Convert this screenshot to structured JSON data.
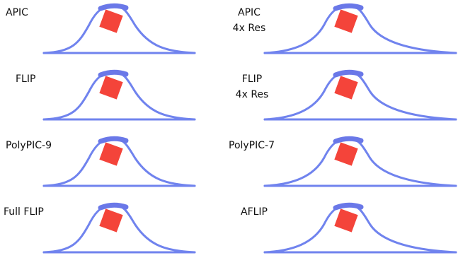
{
  "panels": [
    {
      "lines": [
        "APIC"
      ]
    },
    {
      "lines": [
        "APIC",
        "4x Res"
      ]
    },
    {
      "lines": [
        "FLIP"
      ]
    },
    {
      "lines": [
        "FLIP",
        "4x Res"
      ]
    },
    {
      "lines": [
        "PolyPIC-9"
      ]
    },
    {
      "lines": [
        "PolyPIC-7"
      ]
    },
    {
      "lines": [
        "Full FLIP"
      ]
    },
    {
      "lines": [
        "AFLIP"
      ]
    }
  ]
}
